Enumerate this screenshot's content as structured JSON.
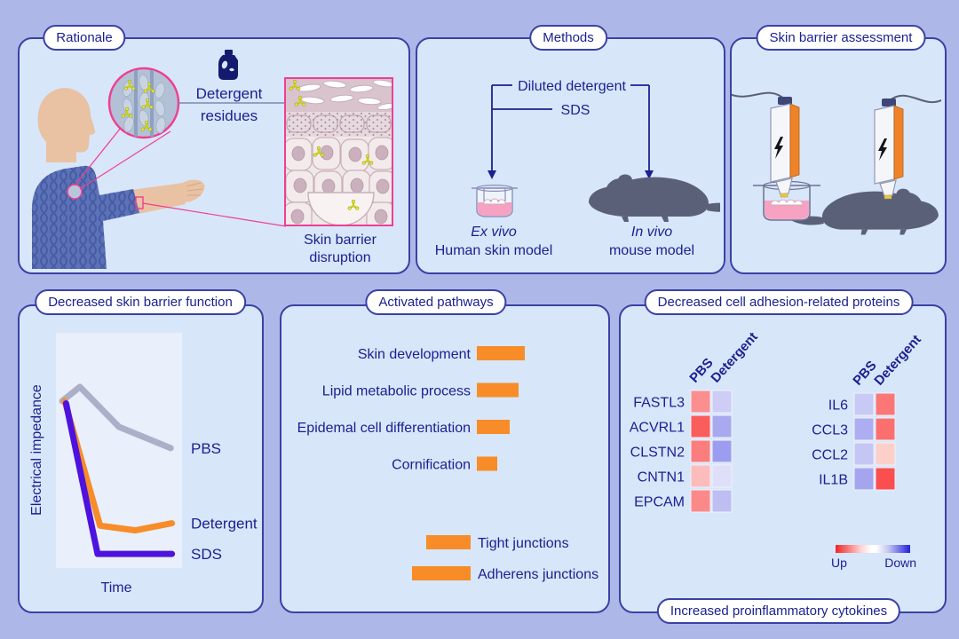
{
  "palette": {
    "background": "#aeb8e8",
    "panel_fill": "#d8e6f9",
    "panel_border": "#3a41a5",
    "text": "#1b2191",
    "accent_orange": "#f78c28",
    "accent_pink": "#ee3f92",
    "mouse_gray": "#5a6078",
    "probe_orange": "#f08228",
    "residue_yellow": "#e4e83a"
  },
  "panels": {
    "rationale": {
      "title": "Rationale",
      "residues_label_line1": "Detergent",
      "residues_label_line2": "residues",
      "caption_line1": "Skin barrier",
      "caption_line2": "disruption"
    },
    "methods": {
      "title": "Methods",
      "treatment_primary": "Diluted detergent",
      "treatment_secondary": "SDS",
      "model_left_type": "Ex vivo",
      "model_left_name": "Human skin model",
      "model_right_type": "In vivo",
      "model_right_name": "mouse model"
    },
    "assessment": {
      "title": "Skin barrier assessment"
    },
    "proteins": {
      "footer": "Increased proinflammatory cytokines"
    }
  },
  "chart_data": [
    {
      "id": "impedance",
      "type": "line",
      "title": "Decreased skin barrier function",
      "xlabel": "Time",
      "ylabel": "Electrical impedance",
      "axes_numeric": false,
      "coords": "normalized_0to1",
      "series": [
        {
          "name": "PBS",
          "color": "#abb0c8",
          "points": [
            [
              0.05,
              0.71
            ],
            [
              0.19,
              0.77
            ],
            [
              0.5,
              0.6
            ],
            [
              0.91,
              0.51
            ]
          ]
        },
        {
          "name": "Detergent",
          "color": "#f78c28",
          "points": [
            [
              0.07,
              0.71
            ],
            [
              0.35,
              0.18
            ],
            [
              0.63,
              0.16
            ],
            [
              0.92,
              0.19
            ]
          ]
        },
        {
          "name": "SDS",
          "color": "#4e12de",
          "points": [
            [
              0.08,
              0.7
            ],
            [
              0.33,
              0.06
            ],
            [
              0.92,
              0.06
            ]
          ]
        }
      ]
    },
    {
      "id": "pathways",
      "type": "bar",
      "title": "Activated pathways",
      "bar_color": "#f78c28",
      "units": "relative",
      "bars": [
        {
          "label": "Skin development",
          "value": 54,
          "align": "label-left"
        },
        {
          "label": "Lipid metabolic process",
          "value": 47,
          "align": "label-left"
        },
        {
          "label": "Epidemal cell differentiation",
          "value": 37,
          "align": "label-left"
        },
        {
          "label": "Cornification",
          "value": 23,
          "align": "label-left"
        },
        {
          "label": "Tight junctions",
          "value": 50,
          "align": "label-right"
        },
        {
          "label": "Adherens junctions",
          "value": 66,
          "align": "label-right"
        }
      ]
    },
    {
      "id": "proteins",
      "type": "heatmap",
      "title": "Decreased cell adhesion-related proteins",
      "columns": [
        "PBS",
        "Detergent"
      ],
      "rows": [
        "FASTL3",
        "ACVRL1",
        "CLSTN2",
        "CNTN1",
        "EPCAM"
      ],
      "cells": [
        [
          "#fb8e8e",
          "#cdcdf6"
        ],
        [
          "#fb5c5c",
          "#a9a9f0"
        ],
        [
          "#fb7d7d",
          "#9d9def"
        ],
        [
          "#fdbcbc",
          "#dfdff9"
        ],
        [
          "#fb8989",
          "#bebef3"
        ]
      ],
      "legend": {
        "up": "Up",
        "down": "Down"
      }
    },
    {
      "id": "cytokines",
      "type": "heatmap",
      "columns": [
        "PBS",
        "Detergent"
      ],
      "rows": [
        "IL6",
        "CCL3",
        "CCL2",
        "IL1B"
      ],
      "cells": [
        [
          "#c9c9f5",
          "#fb7676"
        ],
        [
          "#adadf1",
          "#fb6f6f"
        ],
        [
          "#c6c6f4",
          "#fdcfc9"
        ],
        [
          "#a5a5ef",
          "#fb4e4e"
        ]
      ]
    }
  ]
}
